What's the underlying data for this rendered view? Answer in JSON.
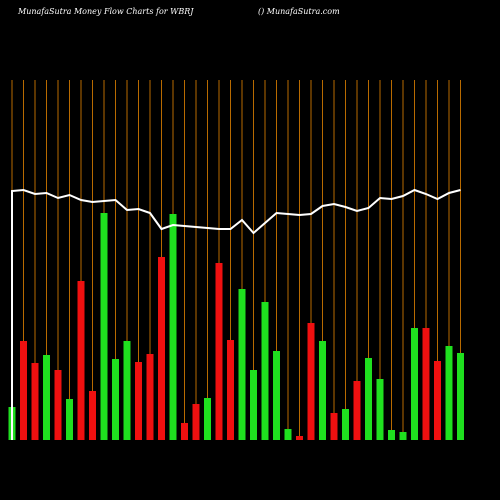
{
  "chart_data": {
    "type": "bar",
    "title": "MunafaSutra  Money Flow  Charts for WBRJ",
    "subtitle": "() MunafaSutra.com",
    "values": [
      33,
      99,
      77,
      85,
      70,
      41,
      159,
      49,
      227,
      81,
      99,
      78,
      86,
      183,
      226,
      17,
      36,
      42,
      177,
      100,
      151,
      70,
      138,
      89,
      11,
      4,
      117,
      99,
      27,
      31,
      59,
      82,
      61,
      10,
      8,
      112,
      112,
      79,
      94,
      87
    ],
    "colors": [
      "#1fe01f",
      "#f01010",
      "#f01010",
      "#1fe01f",
      "#f01010",
      "#1fe01f",
      "#f01010",
      "#f01010",
      "#1fe01f",
      "#1fe01f",
      "#1fe01f",
      "#f01010",
      "#f01010",
      "#f01010",
      "#1fe01f",
      "#f01010",
      "#f01010",
      "#1fe01f",
      "#f01010",
      "#f01010",
      "#1fe01f",
      "#1fe01f",
      "#1fe01f",
      "#1fe01f",
      "#1fe01f",
      "#f01010",
      "#f01010",
      "#1fe01f",
      "#f01010",
      "#1fe01f",
      "#f01010",
      "#1fe01f",
      "#1fe01f",
      "#1fe01f",
      "#1fe01f",
      "#1fe01f",
      "#f01010",
      "#f01010",
      "#1fe01f",
      "#1fe01f"
    ],
    "line": {
      "color": "#ffffff",
      "values": [
        249,
        250,
        246,
        247,
        242,
        245,
        240,
        238,
        239,
        240,
        230,
        231,
        227,
        211,
        215,
        214,
        213,
        212,
        211,
        211,
        220,
        207,
        217,
        227,
        226,
        225,
        226,
        234,
        236,
        233,
        229,
        232,
        242,
        241,
        244,
        250,
        246,
        241,
        247,
        250
      ]
    },
    "ylim": [
      0,
      360
    ],
    "grid_color": "#b86a00"
  }
}
